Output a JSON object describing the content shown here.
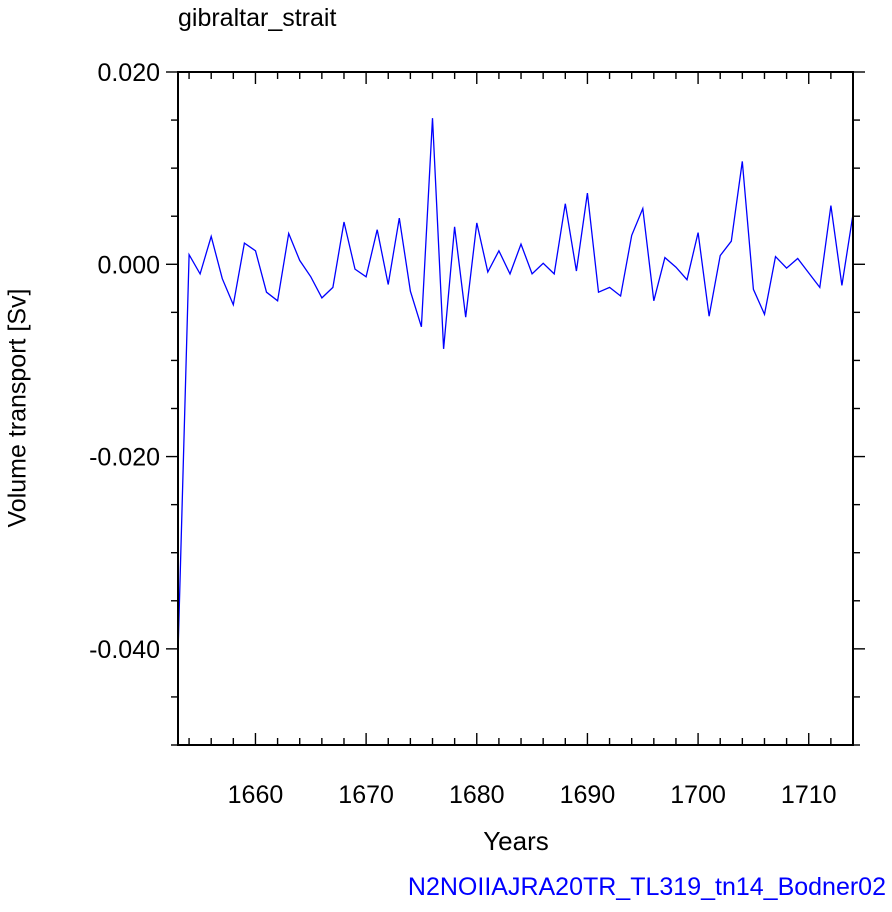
{
  "chart_data": {
    "type": "line",
    "title": "gibraltar_strait",
    "xlabel": "Years",
    "ylabel": "Volume transport [Sv]",
    "caption": "N2NOIIAJRA20TR_TL319_tn14_Bodner02",
    "xlim": [
      1653,
      1714
    ],
    "ylim": [
      -0.05,
      0.02
    ],
    "xticks": [
      1660,
      1670,
      1680,
      1690,
      1700,
      1710
    ],
    "xtick_labels": [
      "1660",
      "1670",
      "1680",
      "1690",
      "1700",
      "1710"
    ],
    "yticks": [
      -0.04,
      -0.02,
      0.0,
      0.02
    ],
    "ytick_labels": [
      "-0.040",
      "-0.020",
      "0.000",
      "0.020"
    ],
    "grid": false,
    "series": [
      {
        "color": "#0000ff",
        "x": [
          1653,
          1654,
          1655,
          1656,
          1657,
          1658,
          1659,
          1660,
          1661,
          1662,
          1663,
          1664,
          1665,
          1666,
          1667,
          1668,
          1669,
          1670,
          1671,
          1672,
          1673,
          1674,
          1675,
          1676,
          1677,
          1678,
          1679,
          1680,
          1681,
          1682,
          1683,
          1684,
          1685,
          1686,
          1687,
          1688,
          1689,
          1690,
          1691,
          1692,
          1693,
          1694,
          1695,
          1696,
          1697,
          1698,
          1699,
          1700,
          1701,
          1702,
          1703,
          1704,
          1705,
          1706,
          1707,
          1708,
          1709,
          1710,
          1711,
          1712,
          1713,
          1714
        ],
        "y": [
          -0.0405,
          0.001,
          -0.001,
          0.0029,
          -0.0015,
          -0.0042,
          0.0022,
          0.0014,
          -0.0029,
          -0.0038,
          0.0032,
          0.0004,
          -0.0013,
          -0.0035,
          -0.0024,
          0.0044,
          -0.0005,
          -0.0013,
          0.0036,
          -0.0021,
          0.0048,
          -0.0028,
          -0.0065,
          0.0152,
          -0.0088,
          0.0039,
          -0.0055,
          0.0043,
          -0.0008,
          0.0014,
          -0.001,
          0.0021,
          -0.001,
          0.0001,
          -0.001,
          0.0063,
          -0.0007,
          0.0074,
          -0.0029,
          -0.0024,
          -0.0033,
          0.003,
          0.0058,
          -0.0038,
          0.0007,
          -0.0003,
          -0.0016,
          0.0033,
          -0.0054,
          0.0009,
          0.0024,
          0.0107,
          -0.0026,
          -0.0052,
          0.0008,
          -0.0004,
          0.0006,
          -0.0009,
          -0.0024,
          0.0061,
          -0.0022,
          0.0052
        ]
      }
    ]
  }
}
